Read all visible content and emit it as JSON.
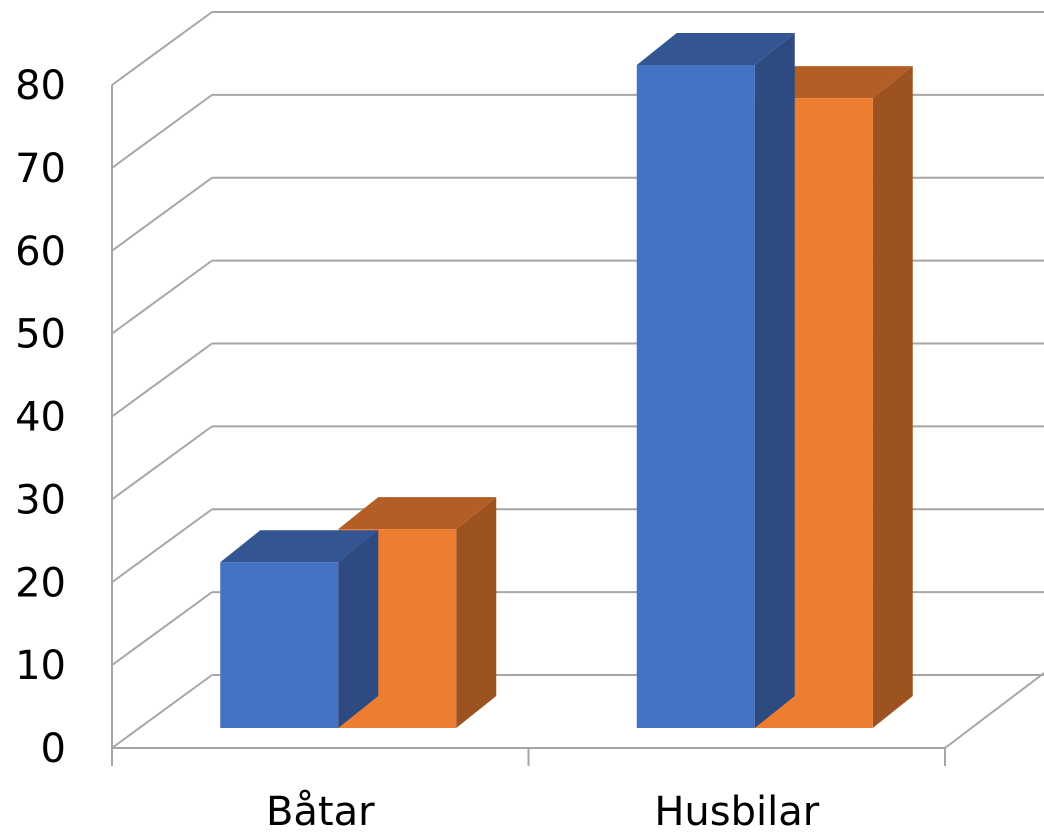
{
  "chart_data": {
    "type": "bar",
    "style": "3d-clustered-column",
    "categories": [
      "Båtar",
      "Husbilar"
    ],
    "series": [
      {
        "color": "#4472C4",
        "values": [
          20,
          80
        ]
      },
      {
        "color": "#ED7D31",
        "values": [
          24,
          76
        ]
      }
    ],
    "ylim": [
      0,
      80
    ],
    "yticks": [
      0,
      10,
      20,
      30,
      40,
      50,
      60,
      70,
      80
    ],
    "grid": true,
    "legend": "none"
  }
}
